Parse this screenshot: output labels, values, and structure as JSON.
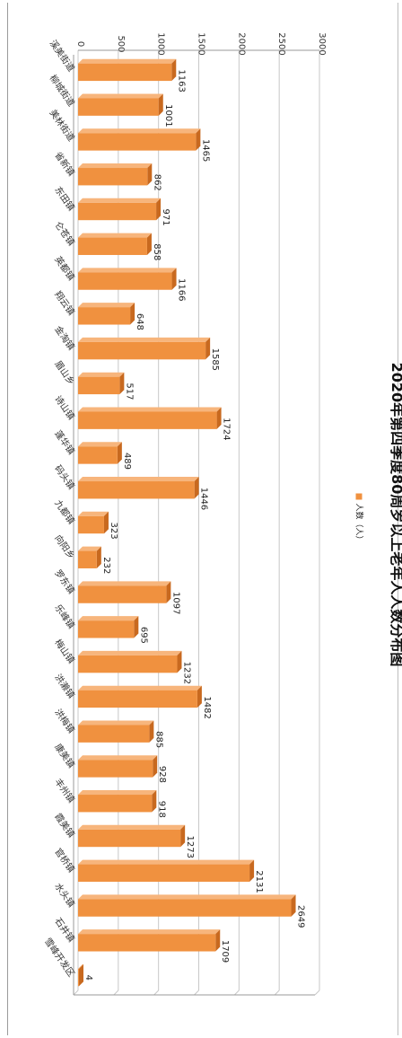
{
  "colors": {
    "bar": "#f0913f",
    "bar_side": "#c8691f",
    "bar_top": "#f7b57c",
    "grid": "#c8c8c8",
    "axis": "#999999"
  },
  "chart_data": {
    "type": "bar",
    "orientation": "horizontal-3d",
    "title": "2020年第四季度80周岁以上老年人人数分布图",
    "legend_position": "right",
    "series": [
      {
        "name": "人数（人）",
        "values": [
          1163,
          1001,
          1465,
          862,
          971,
          858,
          1166,
          648,
          1585,
          517,
          1724,
          489,
          1446,
          323,
          232,
          1097,
          695,
          1232,
          1482,
          885,
          928,
          918,
          1273,
          2131,
          2649,
          1709,
          4
        ]
      }
    ],
    "categories": [
      "溪美街道",
      "柳城街道",
      "美林街道",
      "省新镇",
      "东田镇",
      "仑苍镇",
      "英都镇",
      "翔云镇",
      "金淘镇",
      "眉山乡",
      "诗山镇",
      "蓬华镇",
      "码头镇",
      "九都镇",
      "向阳乡",
      "罗东镇",
      "乐峰镇",
      "梅山镇",
      "洪濑镇",
      "洪梅镇",
      "康美镇",
      "丰州镇",
      "霞美镇",
      "官桥镇",
      "水头镇",
      "石井镇",
      "雪峰开发区"
    ],
    "ylim": [
      0,
      3000
    ],
    "ticks": [
      0,
      500,
      1000,
      1500,
      2000,
      2500,
      3000
    ],
    "grid": true,
    "data_labels": true
  }
}
